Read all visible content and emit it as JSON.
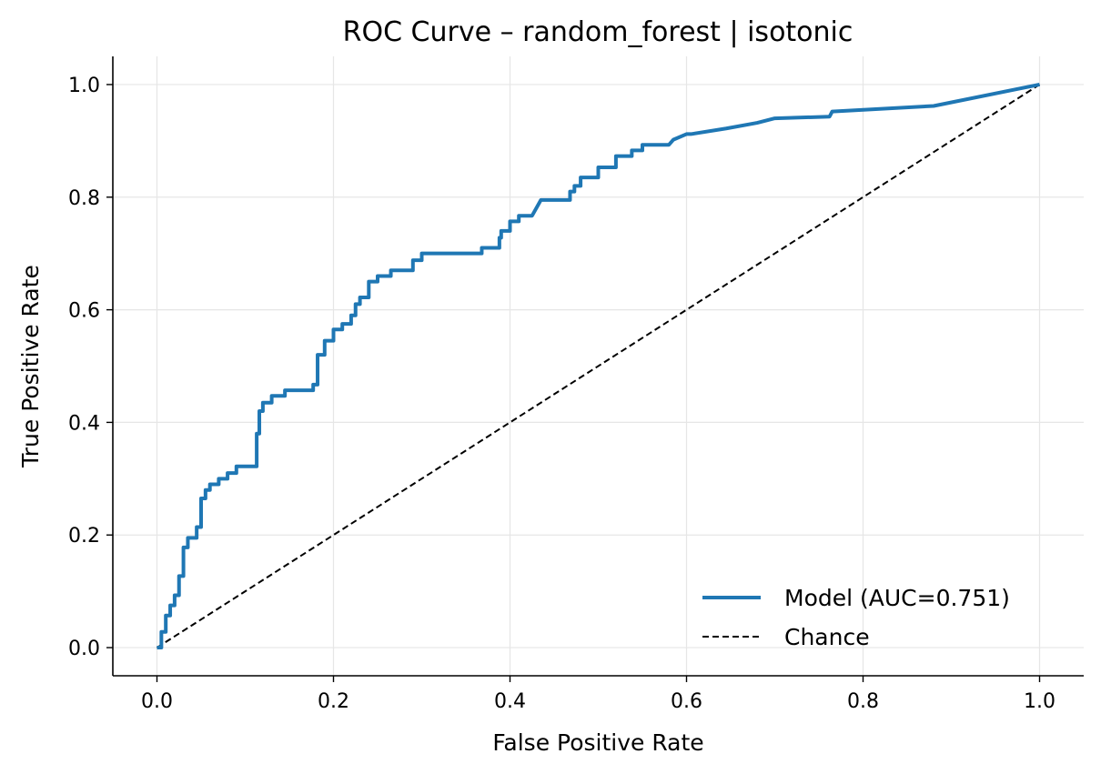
{
  "chart_data": {
    "type": "line",
    "title": "ROC Curve – random_forest | isotonic",
    "xlabel": "False Positive Rate",
    "ylabel": "True Positive Rate",
    "xlim": [
      -0.05,
      1.05
    ],
    "ylim": [
      -0.05,
      1.05
    ],
    "xticks": [
      "0.0",
      "0.2",
      "0.4",
      "0.6",
      "0.8",
      "1.0"
    ],
    "yticks": [
      "0.0",
      "0.2",
      "0.4",
      "0.6",
      "0.8",
      "1.0"
    ],
    "grid": true,
    "legend_position": "lower-right",
    "series": [
      {
        "name": "Model (AUC=0.751)",
        "color": "#1f77b4",
        "style": "solid",
        "x": [
          0.0,
          0.005,
          0.005,
          0.01,
          0.01,
          0.015,
          0.015,
          0.02,
          0.02,
          0.025,
          0.025,
          0.03,
          0.03,
          0.035,
          0.035,
          0.045,
          0.045,
          0.05,
          0.05,
          0.055,
          0.055,
          0.06,
          0.06,
          0.07,
          0.07,
          0.08,
          0.08,
          0.09,
          0.09,
          0.113,
          0.113,
          0.116,
          0.116,
          0.12,
          0.12,
          0.13,
          0.13,
          0.145,
          0.145,
          0.177,
          0.177,
          0.182,
          0.182,
          0.19,
          0.19,
          0.2,
          0.2,
          0.21,
          0.21,
          0.22,
          0.22,
          0.225,
          0.225,
          0.23,
          0.23,
          0.24,
          0.24,
          0.25,
          0.25,
          0.265,
          0.265,
          0.29,
          0.29,
          0.3,
          0.3,
          0.368,
          0.368,
          0.388,
          0.388,
          0.39,
          0.39,
          0.4,
          0.4,
          0.41,
          0.41,
          0.425,
          0.435,
          0.468,
          0.468,
          0.473,
          0.473,
          0.48,
          0.48,
          0.5,
          0.5,
          0.52,
          0.52,
          0.538,
          0.538,
          0.55,
          0.55,
          0.58,
          0.585,
          0.6,
          0.605,
          0.645,
          0.645,
          0.68,
          0.68,
          0.7,
          0.7,
          0.762,
          0.762,
          0.765,
          0.765,
          0.88,
          0.88,
          1.0
        ],
        "y": [
          0.0,
          0.0,
          0.028,
          0.028,
          0.057,
          0.057,
          0.075,
          0.075,
          0.093,
          0.093,
          0.127,
          0.127,
          0.178,
          0.178,
          0.195,
          0.195,
          0.214,
          0.214,
          0.265,
          0.265,
          0.28,
          0.28,
          0.29,
          0.29,
          0.3,
          0.3,
          0.31,
          0.31,
          0.322,
          0.322,
          0.38,
          0.38,
          0.42,
          0.42,
          0.435,
          0.435,
          0.447,
          0.447,
          0.457,
          0.457,
          0.467,
          0.467,
          0.52,
          0.52,
          0.545,
          0.545,
          0.565,
          0.565,
          0.575,
          0.575,
          0.59,
          0.59,
          0.61,
          0.61,
          0.622,
          0.622,
          0.65,
          0.65,
          0.66,
          0.66,
          0.67,
          0.67,
          0.688,
          0.688,
          0.7,
          0.7,
          0.71,
          0.71,
          0.728,
          0.728,
          0.74,
          0.74,
          0.757,
          0.757,
          0.767,
          0.767,
          0.795,
          0.795,
          0.81,
          0.81,
          0.82,
          0.82,
          0.835,
          0.835,
          0.853,
          0.853,
          0.873,
          0.873,
          0.883,
          0.883,
          0.893,
          0.893,
          0.902,
          0.912,
          0.912,
          0.922,
          0.922,
          0.932,
          0.932,
          0.94,
          0.94,
          0.943,
          0.943,
          0.952,
          0.952,
          0.962,
          0.962,
          1.0
        ]
      },
      {
        "name": "Chance",
        "color": "#000000",
        "style": "dashed",
        "x": [
          0.0,
          1.0
        ],
        "y": [
          0.0,
          1.0
        ]
      }
    ]
  }
}
